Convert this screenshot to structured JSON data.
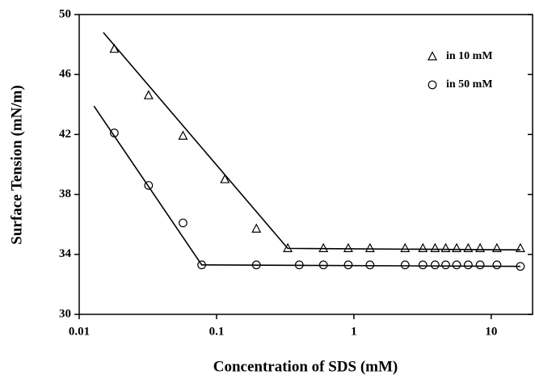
{
  "chart_data": {
    "type": "scatter",
    "xlabel": "Concentration of SDS (mM)",
    "ylabel": "Surface Tension (mN/m)",
    "xscale": "log",
    "xlim": [
      0.01,
      20
    ],
    "xticks": [
      0.01,
      0.1,
      1,
      10
    ],
    "ylim": [
      30,
      50
    ],
    "yticks": [
      30,
      34,
      38,
      42,
      46,
      50
    ],
    "legend": "upper right",
    "series": [
      {
        "name": "in 10 mM",
        "marker": "triangle",
        "color": "#000000",
        "x": [
          0.018,
          0.032,
          0.057,
          0.115,
          0.195,
          0.33,
          0.6,
          0.91,
          1.31,
          2.36,
          3.18,
          3.9,
          4.66,
          5.6,
          6.8,
          8.3,
          11,
          16.3
        ],
        "values": [
          47.7,
          44.6,
          41.9,
          39.0,
          35.7,
          34.4,
          34.4,
          34.4,
          34.4,
          34.4,
          34.4,
          34.4,
          34.4,
          34.4,
          34.4,
          34.4,
          34.4,
          34.4
        ]
      },
      {
        "name": "in 50 mM",
        "marker": "circle",
        "color": "#000000",
        "x": [
          0.018,
          0.032,
          0.057,
          0.078,
          0.195,
          0.4,
          0.6,
          0.91,
          1.31,
          2.36,
          3.18,
          3.9,
          4.66,
          5.6,
          6.8,
          8.3,
          11,
          16.3
        ],
        "values": [
          42.1,
          38.6,
          36.1,
          33.3,
          33.3,
          33.3,
          33.3,
          33.3,
          33.3,
          33.3,
          33.3,
          33.3,
          33.3,
          33.3,
          33.3,
          33.3,
          33.3,
          33.2
        ]
      }
    ],
    "fit_lines": [
      {
        "x": [
          0.015,
          0.33,
          16.3
        ],
        "values": [
          48.8,
          34.4,
          34.3
        ]
      },
      {
        "x": [
          0.0128,
          0.078,
          16.3
        ],
        "values": [
          43.9,
          33.3,
          33.2
        ]
      }
    ]
  }
}
